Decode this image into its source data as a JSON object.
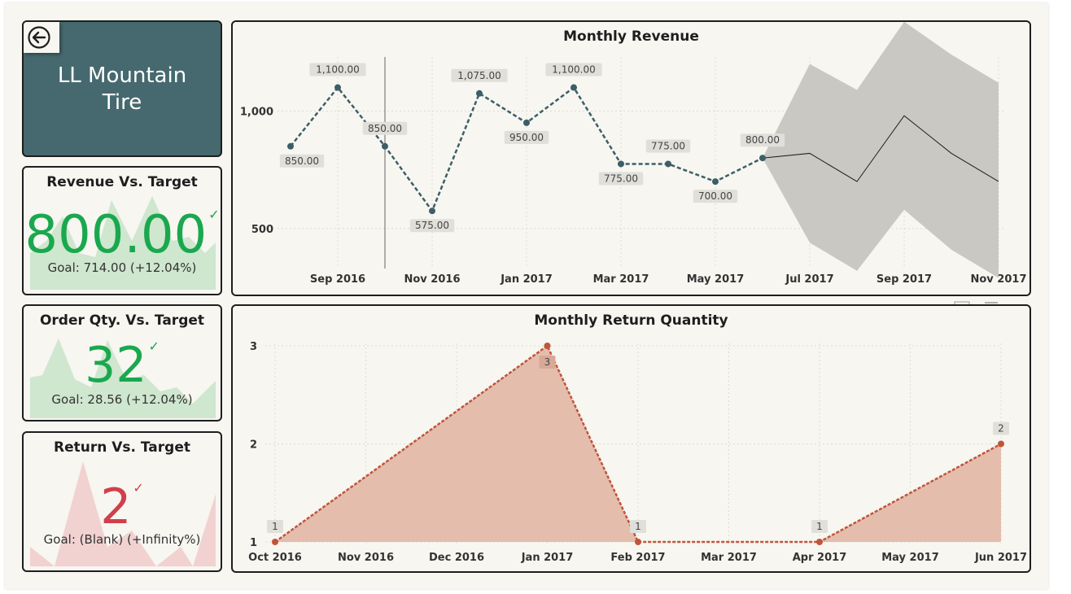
{
  "product": {
    "name_line1": "LL Mountain",
    "name_line2": "Tire",
    "back_icon": "back-arrow-icon"
  },
  "kpis": {
    "revenue": {
      "title": "Revenue Vs. Target",
      "value": "800.00",
      "goal_label": "Goal:",
      "goal_text": "714.00 (+12.04%)",
      "status_icon": "checkmark-icon",
      "value_color": "#1aa84f",
      "spark_color": "#cfe6cf"
    },
    "order_qty": {
      "title": "Order Qty. Vs. Target",
      "value": "32",
      "goal_label": "Goal:",
      "goal_text": "28.56 (+12.04%)",
      "status_icon": "checkmark-icon",
      "value_color": "#1aa84f",
      "spark_color": "#cfe6cf"
    },
    "return": {
      "title": "Return Vs. Target",
      "value": "2",
      "goal_label": "Goal:",
      "goal_text": "(Blank) (+Infinity%)",
      "status_icon": "checkmark-icon",
      "value_color": "#d0404b",
      "spark_color": "#f2d1d1"
    }
  },
  "chart_data": [
    {
      "type": "line",
      "title": "Monthly Revenue",
      "x_tick_labels": [
        "Sep 2016",
        "Nov 2016",
        "Jan 2017",
        "Mar 2017",
        "May 2017",
        "Jul 2017",
        "Sep 2017",
        "Nov 2017"
      ],
      "y_tick_labels": [
        "500",
        "1,000"
      ],
      "ylim": [
        330,
        1230
      ],
      "series": [
        {
          "style": "dashed",
          "color": "#3d5e66",
          "x": [
            "Aug 2016",
            "Sep 2016",
            "Oct 2016",
            "Nov 2016",
            "Dec 2016",
            "Jan 2017",
            "Feb 2017",
            "Mar 2017",
            "Apr 2017",
            "May 2017",
            "Jun 2017"
          ],
          "values": [
            850,
            1100,
            850,
            575,
            1075,
            950,
            1100,
            775,
            775,
            700,
            800
          ],
          "labels": [
            "850.00",
            "1,100.00",
            "850.00",
            "575.00",
            "1,075.00",
            "950.00",
            "1,100.00",
            "775.00",
            "775.00",
            "700.00",
            "800.00"
          ]
        },
        {
          "style": "forecast",
          "color": "#1e1e1e",
          "band_color": "#c9c8c3",
          "x": [
            "Jun 2017",
            "Jul 2017",
            "Aug 2017",
            "Sep 2017",
            "Oct 2017",
            "Nov 2017"
          ],
          "values": [
            800,
            820,
            700,
            980,
            820,
            700
          ],
          "upper": [
            800,
            1200,
            1090,
            1380,
            1240,
            1120
          ],
          "lower": [
            800,
            440,
            320,
            580,
            410,
            290
          ]
        }
      ],
      "reference_line_x": "Oct 2016",
      "grid": true
    },
    {
      "type": "area",
      "title": "Monthly Return Quantity",
      "x_tick_labels": [
        "Oct 2016",
        "Nov 2016",
        "Dec 2016",
        "Jan 2017",
        "Feb 2017",
        "Mar 2017",
        "Apr 2017",
        "May 2017",
        "Jun 2017"
      ],
      "y_tick_labels": [
        "1",
        "2",
        "3"
      ],
      "ylim": [
        1,
        3
      ],
      "series": [
        {
          "color": "#c0553a",
          "fill": "#e3b9a9",
          "x": [
            "Oct 2016",
            "Jan 2017",
            "Feb 2017",
            "Apr 2017",
            "Jun 2017"
          ],
          "values": [
            1,
            3,
            1,
            1,
            2
          ],
          "labels": [
            "1",
            "3",
            "1",
            "1",
            "2"
          ]
        }
      ],
      "grid": true
    }
  ]
}
